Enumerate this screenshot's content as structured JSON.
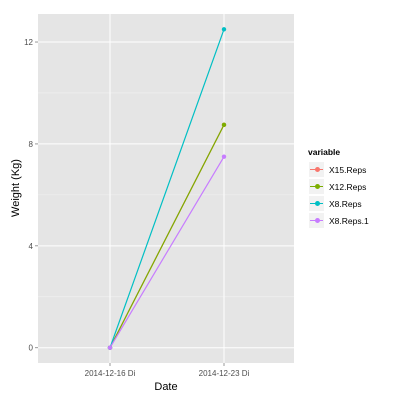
{
  "chart_data": {
    "type": "line",
    "title": "",
    "xlabel": "Date",
    "ylabel": "Weight (Kg)",
    "categories": [
      "2014-12-16 Di",
      "2014-12-23 Di"
    ],
    "ylim": [
      -0.6,
      13.1
    ],
    "yticks": [
      0,
      4,
      8,
      12
    ],
    "ytick_labels": [
      "0",
      "4",
      "8",
      "12"
    ],
    "grid": true,
    "legend": {
      "title": "variable",
      "position": "right"
    },
    "series": [
      {
        "name": "X15.Reps",
        "color": "#F8766D",
        "values": [
          0,
          8.75
        ]
      },
      {
        "name": "X12.Reps",
        "color": "#7CAE00",
        "values": [
          0,
          8.75
        ]
      },
      {
        "name": "X8.Reps",
        "color": "#00BFC4",
        "values": [
          0,
          12.5
        ]
      },
      {
        "name": "X8.Reps.1",
        "color": "#C77CFF",
        "values": [
          0,
          7.5
        ]
      }
    ]
  }
}
